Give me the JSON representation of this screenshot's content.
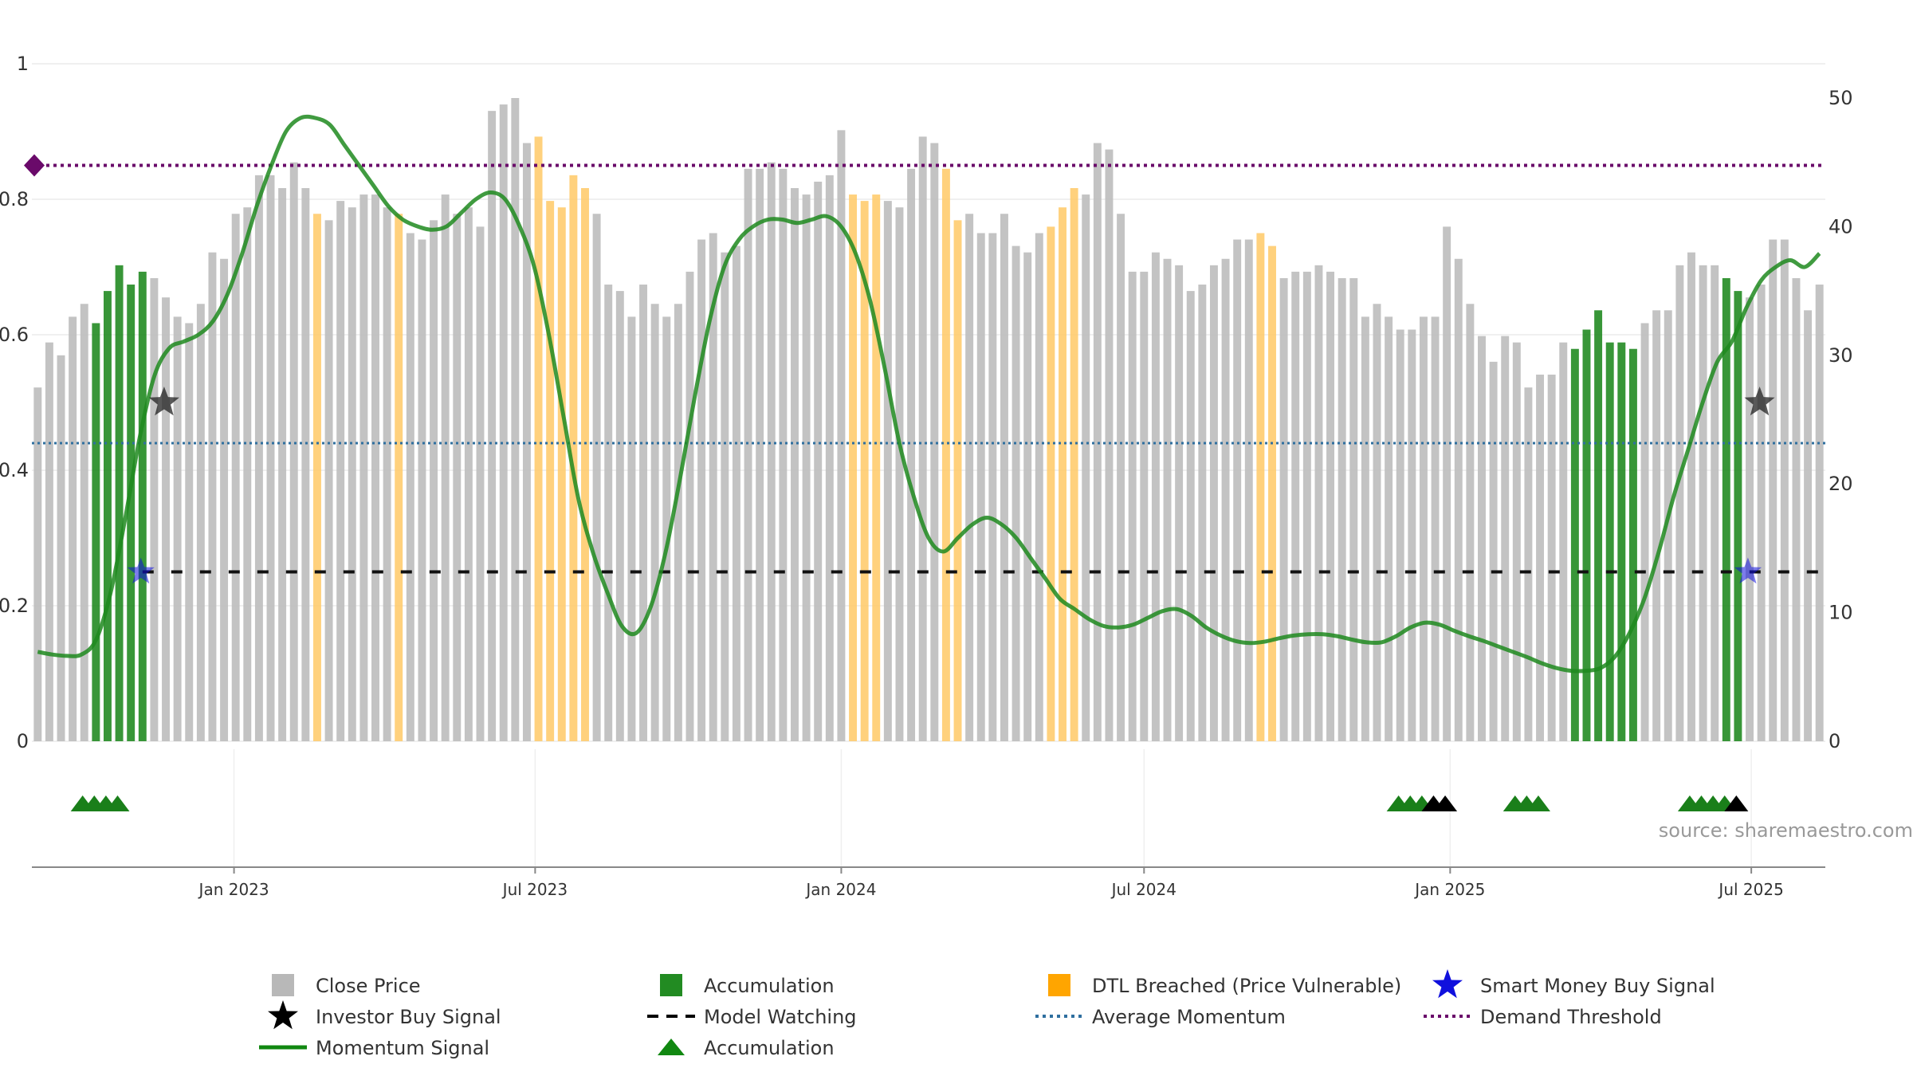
{
  "source_text": "source: sharemaestro.com",
  "colors": {
    "grey": "#c0c0c0",
    "green": "#228b22",
    "orange": "#ffc966",
    "momentum": "#1e8a1e",
    "purple": "#6a0a6a",
    "avg": "#2f6f9f",
    "smart": "#1010dd",
    "investor": "#222222"
  },
  "legend": [
    {
      "label": "Close Price",
      "marker": "grey-square"
    },
    {
      "label": "Accumulation",
      "marker": "green-square"
    },
    {
      "label": "DTL Breached (Price Vulnerable)",
      "marker": "orange-square"
    },
    {
      "label": "Smart Money Buy Signal",
      "marker": "blue-star"
    },
    {
      "label": "Investor Buy Signal",
      "marker": "black-star"
    },
    {
      "label": "Model Watching",
      "marker": "dashed-line"
    },
    {
      "label": "Average Momentum",
      "marker": "dotted-blue-line"
    },
    {
      "label": "Demand Threshold",
      "marker": "dotted-purple-line"
    },
    {
      "label": "Momentum Signal",
      "marker": "green-line"
    },
    {
      "label": "Accumulation",
      "marker": "green-triangle"
    }
  ],
  "chart_data": {
    "type": "bar",
    "x_start": "2022-09-05",
    "bar_interval_days": 7,
    "x_ticks": [
      {
        "date": "2023-01-01",
        "label": "Jan 2023"
      },
      {
        "date": "2023-07-01",
        "label": "Jul 2023"
      },
      {
        "date": "2024-01-01",
        "label": "Jan 2024"
      },
      {
        "date": "2024-07-01",
        "label": "Jul 2024"
      },
      {
        "date": "2025-01-01",
        "label": "Jan 2025"
      },
      {
        "date": "2025-07-01",
        "label": "Jul 2025"
      }
    ],
    "left_axis": {
      "ylim": [
        0,
        1
      ],
      "ticks": [
        "0",
        "0.2",
        "0.4",
        "0.6",
        "0.8",
        "1"
      ]
    },
    "right_axis": {
      "ylim": [
        0,
        50
      ],
      "ticks": [
        "0",
        "10",
        "20",
        "30",
        "40",
        "50"
      ]
    },
    "close_price": [
      27.5,
      31,
      30,
      33,
      34,
      32.5,
      35,
      37,
      35.5,
      36.5,
      36,
      34.5,
      33,
      32.5,
      34,
      38,
      37.5,
      41,
      41.5,
      44,
      44,
      43,
      45,
      43,
      41,
      40.5,
      42,
      41.5,
      42.5,
      42.5,
      41.5,
      41,
      39.5,
      39,
      40.5,
      42.5,
      41,
      41.5,
      40,
      49,
      49.5,
      50,
      46.5,
      47,
      42,
      41.5,
      44,
      43,
      41,
      35.5,
      35,
      33,
      35.5,
      34,
      33,
      34,
      36.5,
      39,
      39.5,
      38,
      38.5,
      44.5,
      44.5,
      45,
      44.5,
      43,
      42.5,
      43.5,
      44,
      47.5,
      42.5,
      42,
      42.5,
      42,
      41.5,
      44.5,
      47,
      46.5,
      44.5,
      40.5,
      41,
      39.5,
      39.5,
      41,
      38.5,
      38,
      39.5,
      40,
      41.5,
      43,
      42.5,
      46.5,
      46,
      41,
      36.5,
      36.5,
      38,
      37.5,
      37,
      35,
      35.5,
      37,
      37.5,
      39,
      39,
      39.5,
      38.5,
      36,
      36.5,
      36.5,
      37,
      36.5,
      36,
      36,
      33,
      34,
      33,
      32,
      32,
      33,
      33,
      40,
      37.5,
      34,
      31.5,
      29.5,
      31.5,
      31,
      27.5,
      28.5,
      28.5,
      31,
      30.5,
      32,
      33.5,
      31,
      31,
      30.5,
      32.5,
      33.5,
      33.5,
      37,
      38,
      37,
      37,
      36,
      35,
      34.5,
      35.5,
      39,
      39,
      36,
      33.5,
      35.5
    ],
    "bar_state": "GGGGGAAAAAGGGGGGGGGGGGGGDGGGGGGDGGGGGGGGGGGDDDDDGGGGGGGGGGGGGGGGGGGGGGDDDGGGGGDDGGGGGGGDDDGGGGGGGGGGGGGGGDDGGGGGGGGGGGGGGGGGGGGGGGGGAAAAAAGGGGGGGAAGGGGGGGGGGGGGGGGAAAAAAGGGGGGGGGGGGGGG",
    "momentum": [
      0.132,
      0.128,
      0.126,
      0.128,
      0.15,
      0.22,
      0.33,
      0.45,
      0.54,
      0.58,
      0.59,
      0.6,
      0.62,
      0.66,
      0.72,
      0.79,
      0.85,
      0.9,
      0.92,
      0.92,
      0.91,
      0.88,
      0.85,
      0.82,
      0.79,
      0.77,
      0.76,
      0.755,
      0.76,
      0.78,
      0.8,
      0.81,
      0.8,
      0.76,
      0.7,
      0.6,
      0.48,
      0.36,
      0.28,
      0.22,
      0.17,
      0.16,
      0.2,
      0.28,
      0.39,
      0.51,
      0.62,
      0.7,
      0.74,
      0.76,
      0.77,
      0.77,
      0.765,
      0.77,
      0.775,
      0.76,
      0.72,
      0.65,
      0.55,
      0.44,
      0.36,
      0.3,
      0.28,
      0.3,
      0.32,
      0.33,
      0.32,
      0.3,
      0.27,
      0.24,
      0.21,
      0.195,
      0.18,
      0.17,
      0.168,
      0.172,
      0.182,
      0.192,
      0.195,
      0.185,
      0.168,
      0.156,
      0.148,
      0.145,
      0.147,
      0.152,
      0.156,
      0.158,
      0.158,
      0.155,
      0.15,
      0.146,
      0.146,
      0.155,
      0.168,
      0.175,
      0.172,
      0.163,
      0.155,
      0.148,
      0.14,
      0.132,
      0.124,
      0.115,
      0.108,
      0.104,
      0.104,
      0.108,
      0.125,
      0.16,
      0.21,
      0.28,
      0.36,
      0.43,
      0.5,
      0.56,
      0.59,
      0.64,
      0.68,
      0.7,
      0.71,
      0.7,
      0.72
    ],
    "momentum_x_weeks": [
      0,
      1,
      2,
      3,
      4,
      5,
      6,
      7,
      8,
      9,
      10,
      11,
      12,
      13,
      14,
      15,
      16,
      17,
      18,
      19,
      20,
      21,
      22,
      23,
      24,
      25,
      26,
      27,
      28,
      29,
      30,
      31,
      32,
      33,
      34,
      35,
      36,
      37,
      38,
      39,
      40,
      41,
      42,
      43,
      44,
      45,
      46,
      47,
      48,
      49,
      50,
      51,
      52,
      53,
      54,
      55,
      56,
      57,
      58,
      59,
      60,
      61,
      62,
      63,
      64,
      65,
      66,
      67,
      68,
      69,
      70,
      71,
      72,
      73,
      74,
      75,
      76,
      77,
      78,
      79,
      80,
      81,
      82,
      83,
      84,
      85,
      86,
      87,
      88,
      89,
      90,
      91,
      92,
      93,
      94,
      95,
      96,
      97,
      98,
      99,
      100,
      101,
      102,
      103,
      104,
      105,
      106,
      107,
      108,
      109,
      110,
      111,
      112,
      113,
      114,
      115,
      116,
      117,
      118,
      119,
      120,
      121,
      122
    ],
    "average_momentum": 0.44,
    "demand_threshold": 0.85,
    "model_watching": 0.25,
    "investor_buy_signals": [
      {
        "date": "2022-11-20",
        "value": 0.5
      },
      {
        "date": "2025-07-06",
        "value": 0.5
      }
    ],
    "smart_money_buy_signals": [
      {
        "date": "2022-11-06",
        "value": 0.25
      },
      {
        "date": "2025-06-29",
        "value": 0.25
      }
    ],
    "accumulation_triangles": [
      {
        "date": "2022-10-02",
        "color": "green"
      },
      {
        "date": "2022-10-09",
        "color": "green"
      },
      {
        "date": "2022-10-16",
        "color": "green"
      },
      {
        "date": "2022-10-23",
        "color": "green"
      },
      {
        "date": "2024-12-01",
        "color": "green"
      },
      {
        "date": "2024-12-08",
        "color": "green"
      },
      {
        "date": "2024-12-15",
        "color": "green"
      },
      {
        "date": "2024-12-22",
        "color": "black"
      },
      {
        "date": "2024-12-29",
        "color": "black"
      },
      {
        "date": "2025-02-09",
        "color": "green"
      },
      {
        "date": "2025-02-16",
        "color": "green"
      },
      {
        "date": "2025-02-23",
        "color": "green"
      },
      {
        "date": "2025-05-25",
        "color": "green"
      },
      {
        "date": "2025-06-01",
        "color": "green"
      },
      {
        "date": "2025-06-08",
        "color": "green"
      },
      {
        "date": "2025-06-15",
        "color": "green"
      },
      {
        "date": "2025-06-22",
        "color": "black"
      }
    ]
  }
}
